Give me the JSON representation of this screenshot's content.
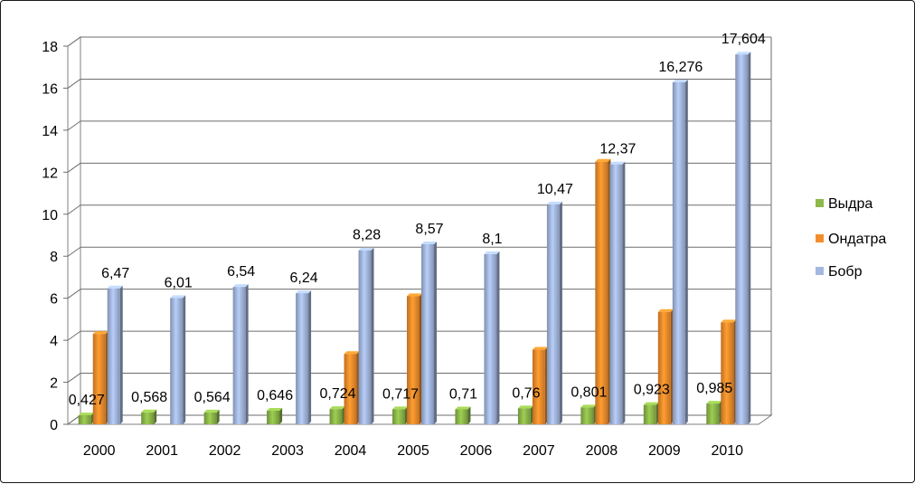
{
  "chart_data": {
    "type": "bar",
    "categories": [
      "2000",
      "2001",
      "2002",
      "2003",
      "2004",
      "2005",
      "2006",
      "2007",
      "2008",
      "2009",
      "2010"
    ],
    "series": [
      {
        "name": "Выдра",
        "color": "#8db84a",
        "values": [
          0.427,
          0.568,
          0.564,
          0.646,
          0.724,
          0.717,
          0.71,
          0.76,
          0.801,
          0.923,
          0.985
        ],
        "labels": [
          "0,427",
          "0,568",
          "0,564",
          "0,646",
          "0,724",
          "0,717",
          "0,71",
          "0,76",
          "0,801",
          "0,923",
          "0,985"
        ]
      },
      {
        "name": "Ондатра",
        "color": "#f38d2c",
        "values": [
          4.3,
          null,
          null,
          null,
          3.35,
          6.1,
          null,
          3.55,
          12.5,
          5.35,
          4.85
        ],
        "labels": [
          "",
          "",
          "",
          "",
          "",
          "",
          "",
          "",
          "",
          "",
          ""
        ]
      },
      {
        "name": "Бобр",
        "color": "#a4b8df",
        "values": [
          6.47,
          6.01,
          6.54,
          6.24,
          8.28,
          8.57,
          8.1,
          10.47,
          12.37,
          16.276,
          17.604
        ],
        "labels": [
          "6,47",
          "6,01",
          "6,54",
          "6,24",
          "8,28",
          "8,57",
          "8,1",
          "10,47",
          "12,37",
          "16,276",
          "17,604"
        ]
      }
    ],
    "yticks": [
      "0",
      "2",
      "4",
      "6",
      "8",
      "10",
      "12",
      "14",
      "16",
      "18"
    ],
    "ylim": [
      0,
      18
    ],
    "grid": true,
    "legend_position": "right"
  }
}
